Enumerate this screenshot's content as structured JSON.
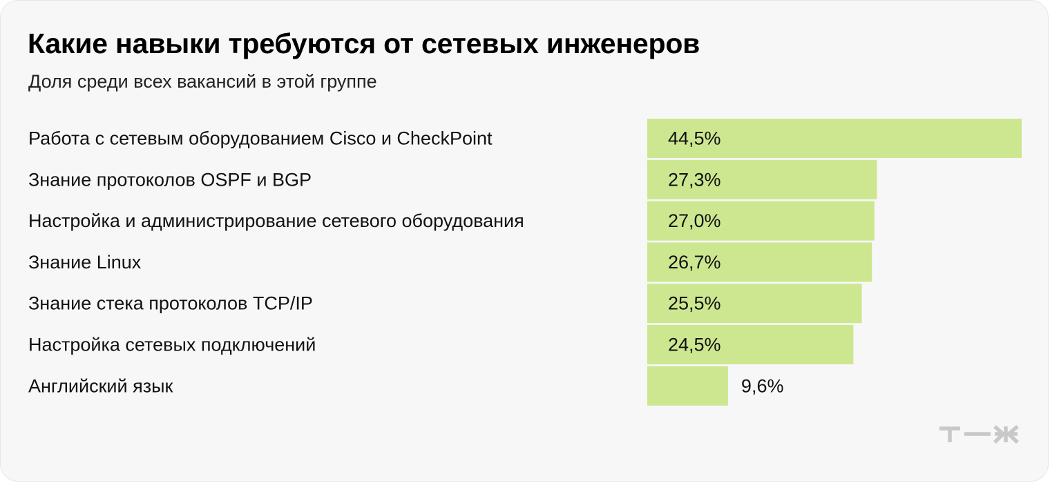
{
  "header": {
    "title": "Какие навыки требуются от сетевых инженеров",
    "subtitle": "Доля среди всех вакансий в этой группе"
  },
  "chart_data": {
    "type": "bar",
    "orientation": "horizontal",
    "title": "Какие навыки требуются от сетевых инженеров",
    "subtitle": "Доля среди всех вакансий в этой группе",
    "categories": [
      "Работа с сетевым оборудованием Cisco и CheckPoint",
      "Знание протоколов OSPF и BGP",
      "Настройка и администрирование сетевого оборудования",
      "Знание Linux",
      "Знание стека протоколов TCP/IP",
      "Настройка сетевых подключений",
      "Английский язык"
    ],
    "values": [
      44.5,
      27.3,
      27.0,
      26.7,
      25.5,
      24.5,
      9.6
    ],
    "value_labels": [
      "44,5%",
      "27,3%",
      "27,0%",
      "26,7%",
      "25,5%",
      "24,5%",
      "9,6%"
    ],
    "unit": "%",
    "bar_color": "#cde791",
    "grid": false,
    "legend": "none"
  },
  "brand": {
    "logo_icon": "tzh-logo-icon",
    "logo_color": "#c8c8c8",
    "card_background": "#f7f7f7"
  }
}
